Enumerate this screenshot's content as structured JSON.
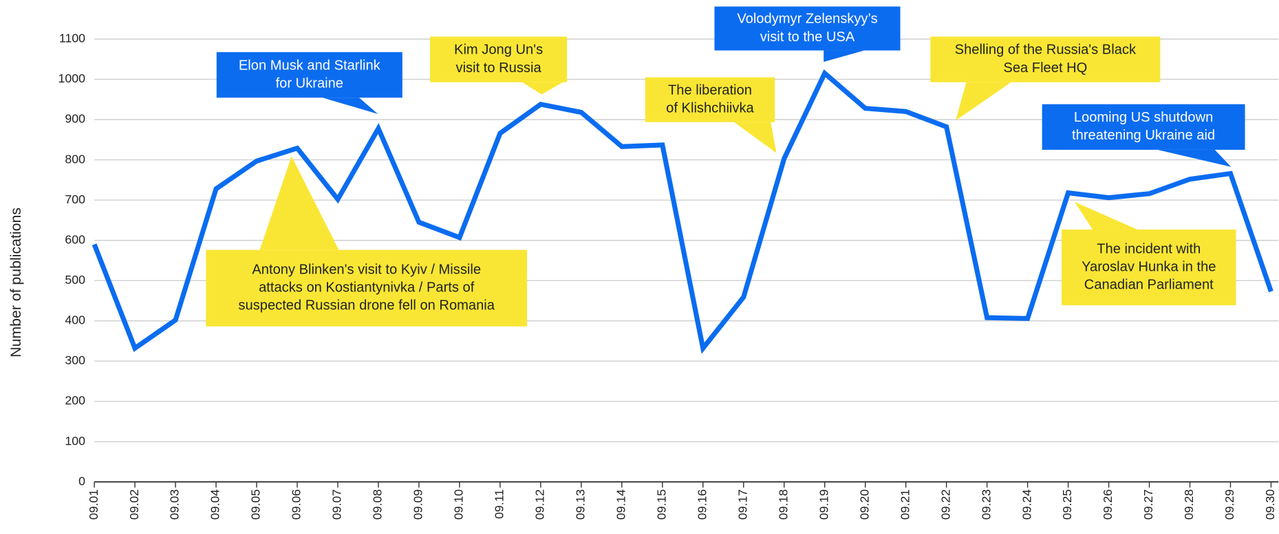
{
  "chart_data": {
    "type": "line",
    "y_label": "Number of publications",
    "categories": [
      "09.01",
      "09.02",
      "09.03",
      "09.04",
      "09.05",
      "09.06",
      "09.07",
      "09.08",
      "09.09",
      "09.10",
      "09.11",
      "09.12",
      "09.13",
      "09.14",
      "09.15",
      "09.16",
      "09.17",
      "09.18",
      "09.19",
      "09.20",
      "09.21",
      "09.22",
      "09.23",
      "09.24",
      "09.25",
      "09.26",
      "09.27",
      "09.28",
      "09.29",
      "09.30"
    ],
    "series": [
      {
        "color": "#0b6cf0",
        "values": [
          590,
          332,
          402,
          728,
          797,
          829,
          702,
          878,
          645,
          607,
          866,
          938,
          918,
          833,
          837,
          332,
          459,
          803,
          1015,
          928,
          920,
          882,
          408,
          406,
          718,
          706,
          716,
          752,
          766,
          473
        ]
      }
    ],
    "ylim": [
      0,
      1100
    ],
    "yticks": [
      0,
      100,
      200,
      300,
      400,
      500,
      600,
      700,
      800,
      900,
      1000,
      1100
    ],
    "grid": true,
    "annotations": [
      {
        "lines": [
          "Elon Musk and Starlink",
          "for Ukraine"
        ],
        "color": "#0b6cf0"
      },
      {
        "lines": [
          "Kim Jong Un's",
          "visit to Russia"
        ],
        "color": "#f9e634"
      },
      {
        "lines": [
          "Volodymyr Zelenskyy’s",
          "visit to the USA"
        ],
        "color": "#0b6cf0"
      },
      {
        "lines": [
          "The liberation",
          "of Klishchiivka"
        ],
        "color": "#f9e634"
      },
      {
        "lines": [
          "Shelling of the Russia's Black",
          "Sea Fleet HQ"
        ],
        "color": "#f9e634"
      },
      {
        "lines": [
          "Looming US shutdown",
          "threatening Ukraine aid"
        ],
        "color": "#0b6cf0"
      },
      {
        "lines": [
          "Antony Blinken's visit to Kyiv / Missile",
          "attacks on Kostiantynivka / Parts of",
          "suspected Russian drone fell on Romania"
        ],
        "color": "#f9e634"
      },
      {
        "lines": [
          "The incident with",
          "Yaroslav Hunka in the",
          "Canadian Parliament"
        ],
        "color": "#f9e634"
      }
    ]
  }
}
